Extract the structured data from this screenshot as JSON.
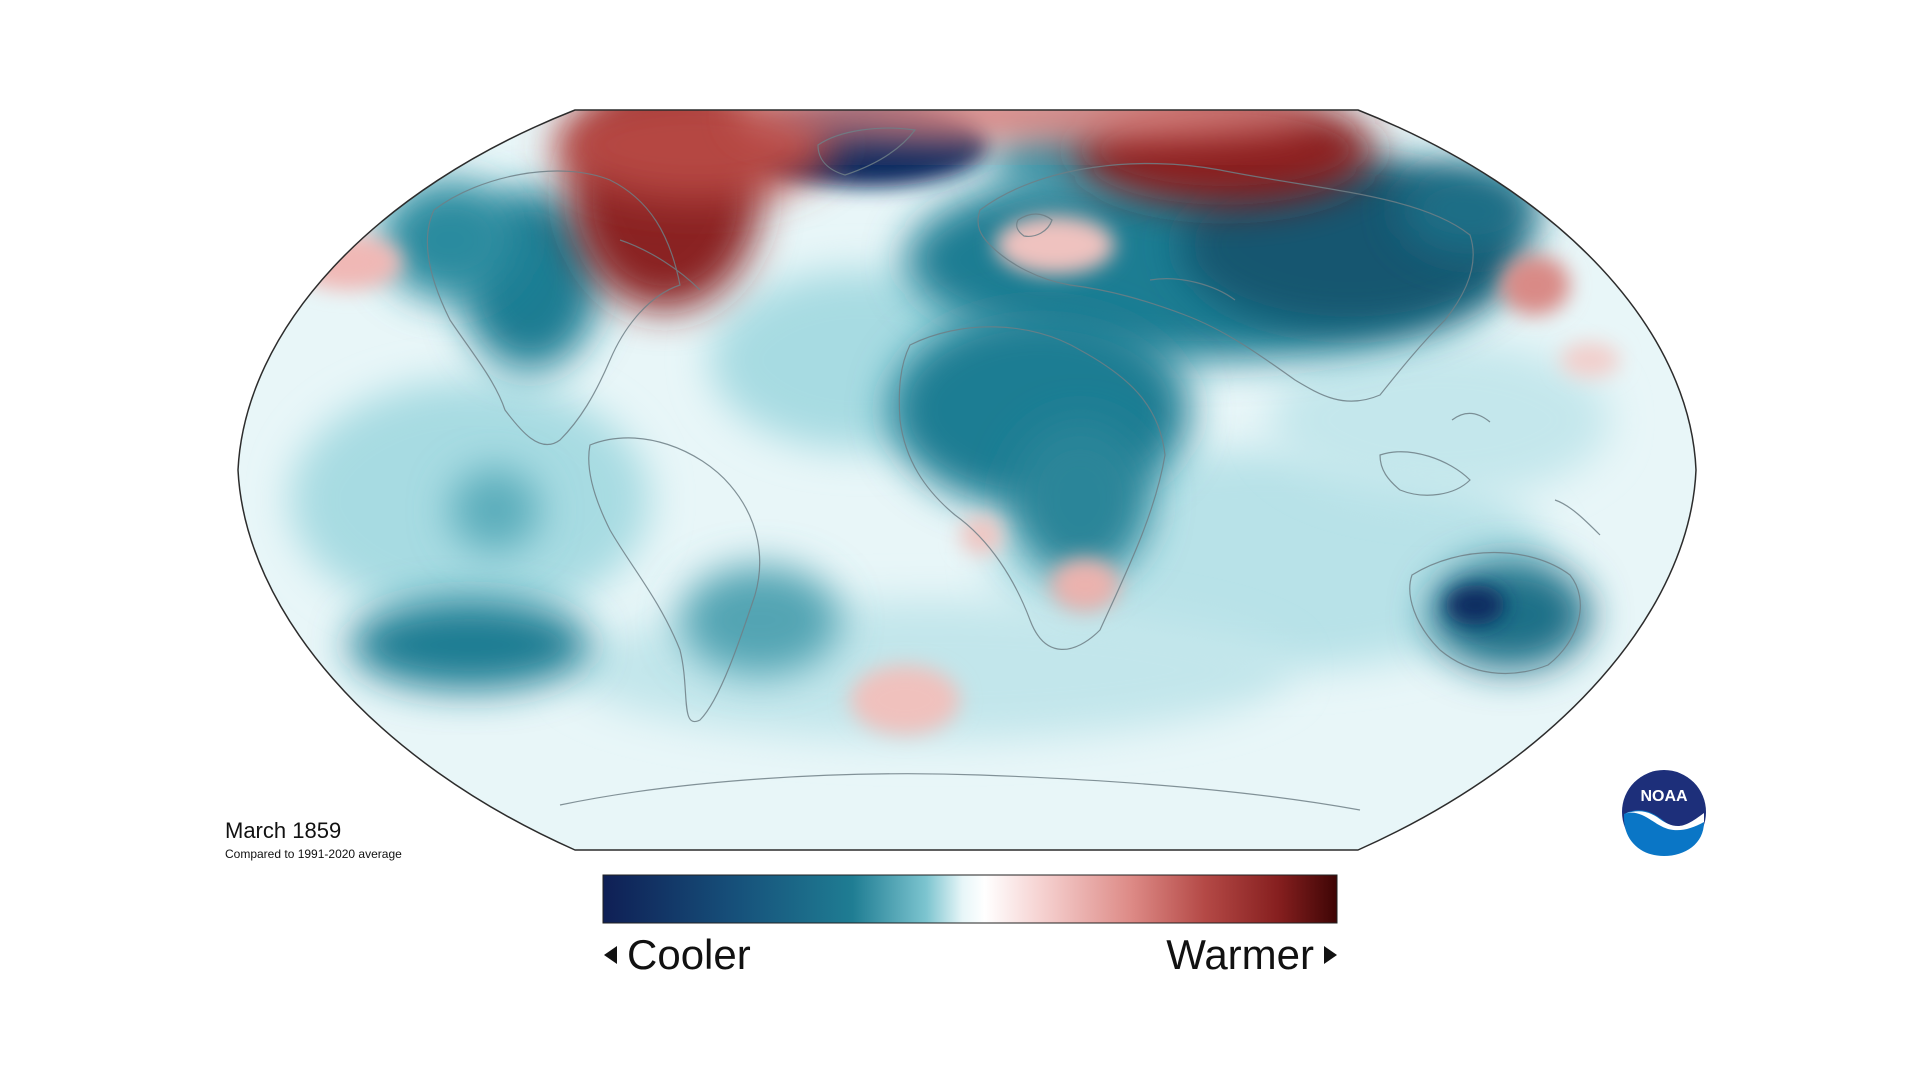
{
  "map": {
    "projection": "Robinson",
    "caption_title": "March 1859",
    "caption_subtitle": "Compared to 1991-2020 average"
  },
  "legend": {
    "left_label": "Cooler",
    "right_label": "Warmer",
    "gradient_colors": [
      "#0f1f55",
      "#16507a",
      "#1f7d93",
      "#7cc4cf",
      "#e7f6f8",
      "#ffffff",
      "#f5d0cf",
      "#dd8a86",
      "#b44946",
      "#861f1f",
      "#3e0505"
    ]
  },
  "logo": {
    "name": "noaa-logo",
    "text": "NOAA",
    "colors": {
      "navy": "#1d2f7a",
      "blue": "#0a76c6"
    }
  },
  "colors": {
    "base": "#e8f6f8",
    "light_cool": "#a7dbe2",
    "cool": "#1f7d93",
    "very_cool": "#0f2a60",
    "warm": "#e6a6a2",
    "very_warm": "#7f1717",
    "coast": "#6e7f86"
  }
}
